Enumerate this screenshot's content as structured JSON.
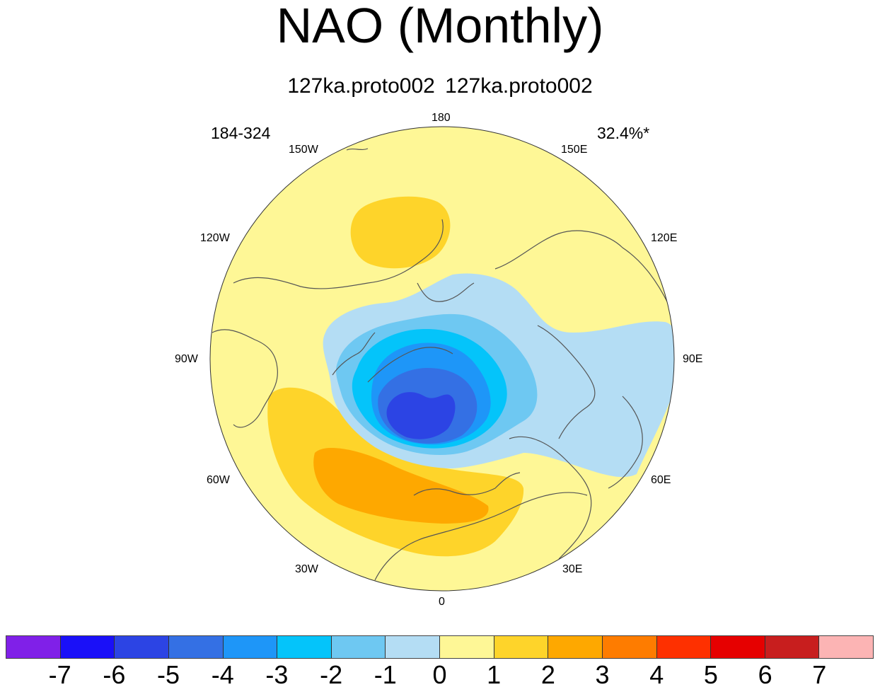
{
  "title": "NAO (Monthly)",
  "subtitle": "127ka.proto002  127ka.proto002",
  "years": "184-324",
  "variance": "32.4%*",
  "longitude_labels": {
    "lon_180": "180",
    "lon_150w": "150W",
    "lon_150e": "150E",
    "lon_120w": "120W",
    "lon_120e": "120E",
    "lon_90w": "90W",
    "lon_90e": "90E",
    "lon_60w": "60W",
    "lon_60e": "60E",
    "lon_30w": "30W",
    "lon_30e": "30E",
    "lon_0": "0"
  },
  "colorbar": {
    "colors": [
      "#8020e8",
      "#1a10f8",
      "#2c44e4",
      "#3470e4",
      "#1e96f8",
      "#04c4fa",
      "#6ec8f2",
      "#b4ddf4",
      "#fef796",
      "#fed42a",
      "#fea800",
      "#fe7c00",
      "#fe3000",
      "#e60000",
      "#c81e1e",
      "#fcb4b4"
    ],
    "labels": [
      "-7",
      "-6",
      "-5",
      "-4",
      "-3",
      "-2",
      "-1",
      "0",
      "1",
      "2",
      "3",
      "4",
      "5",
      "6",
      "7"
    ]
  },
  "contour_colors": {
    "pos1": "#fef796",
    "pos2": "#fed42a",
    "pos3": "#fea800",
    "neg1": "#b4ddf4",
    "neg2": "#6ec8f2",
    "neg3": "#04c4fa",
    "neg4": "#1e96f8",
    "neg5": "#3470e4",
    "neg6": "#2c44e4",
    "coastline": "#555555",
    "outline": "#333333"
  }
}
